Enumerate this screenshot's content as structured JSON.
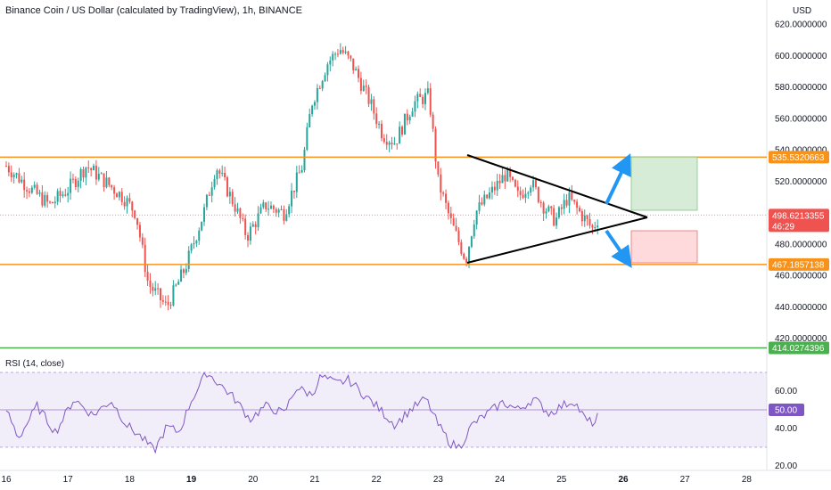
{
  "header": {
    "title": "Binance Coin / US Dollar (calculated by TradingView), 1h, BINANCE",
    "currency": "USD"
  },
  "rsi": {
    "label": "RSI (14, close)",
    "ticks": [
      "60.00",
      "40.00",
      "20.00"
    ],
    "tick_values": [
      60,
      40,
      20
    ],
    "upper_band": 70,
    "lower_band": 30,
    "mid": 50,
    "current_tag": "50.00",
    "colors": {
      "line": "#7e57c2",
      "band_fill": "#7e57c2",
      "mid": "#7e57c2"
    }
  },
  "price_axis": {
    "ticks": [
      "620.0000000",
      "600.0000000",
      "580.0000000",
      "560.0000000",
      "540.0000000",
      "520.0000000",
      "500.0000000",
      "480.0000000",
      "460.0000000",
      "440.0000000",
      "420.0000000"
    ],
    "tick_values": [
      620,
      600,
      580,
      560,
      540,
      520,
      500,
      480,
      460,
      440,
      420
    ]
  },
  "time_axis": {
    "labels": [
      "16",
      "17",
      "18",
      "19",
      "20",
      "21",
      "22",
      "23",
      "24",
      "25",
      "26",
      "27",
      "28"
    ],
    "bold": [
      "19",
      "26"
    ]
  },
  "tags": {
    "resistance": {
      "text": "535.5320663",
      "value": 535.5320663,
      "color": "#f7931a"
    },
    "current_price": {
      "text": "498.6213355",
      "value": 498.6213355,
      "countdown": "46:29",
      "color": "#ef5350"
    },
    "support": {
      "text": "467.1857138",
      "value": 467.1857138,
      "color": "#f7931a"
    },
    "low_line": {
      "text": "414.0274396",
      "value": 414.0274396,
      "color": "#4caf50"
    }
  },
  "colors": {
    "up": "#26a69a",
    "down": "#ef5350",
    "orange_line": "#f7931a",
    "green_line": "#4caf50",
    "triangle": "#000000",
    "arrow": "#2196f3",
    "long_box": "#c8e6c9",
    "short_box": "#ffcdd2"
  },
  "chart_data": {
    "type": "candlestick",
    "title": "Binance Coin / US Dollar (calculated by TradingView), 1h, BINANCE",
    "x_labels": [
      "16",
      "17",
      "18",
      "19",
      "20",
      "21",
      "22",
      "23",
      "24",
      "25",
      "26",
      "27",
      "28"
    ],
    "price_ylim": [
      405,
      630
    ],
    "horizontal_levels": [
      535.5320663,
      467.1857138,
      414.0274396
    ],
    "approx_close_path": [
      {
        "day": 16.0,
        "price": 530
      },
      {
        "day": 16.4,
        "price": 515
      },
      {
        "day": 16.7,
        "price": 505
      },
      {
        "day": 17.0,
        "price": 515
      },
      {
        "day": 17.3,
        "price": 530
      },
      {
        "day": 17.6,
        "price": 520
      },
      {
        "day": 17.9,
        "price": 510
      },
      {
        "day": 18.1,
        "price": 500
      },
      {
        "day": 18.3,
        "price": 455
      },
      {
        "day": 18.6,
        "price": 440
      },
      {
        "day": 18.9,
        "price": 465
      },
      {
        "day": 19.2,
        "price": 500
      },
      {
        "day": 19.4,
        "price": 530
      },
      {
        "day": 19.7,
        "price": 505
      },
      {
        "day": 19.9,
        "price": 485
      },
      {
        "day": 20.2,
        "price": 505
      },
      {
        "day": 20.5,
        "price": 500
      },
      {
        "day": 20.8,
        "price": 530
      },
      {
        "day": 20.95,
        "price": 570
      },
      {
        "day": 21.2,
        "price": 595
      },
      {
        "day": 21.4,
        "price": 605
      },
      {
        "day": 21.6,
        "price": 595
      },
      {
        "day": 21.9,
        "price": 570
      },
      {
        "day": 22.1,
        "price": 550
      },
      {
        "day": 22.3,
        "price": 545
      },
      {
        "day": 22.6,
        "price": 570
      },
      {
        "day": 22.85,
        "price": 575
      },
      {
        "day": 23.0,
        "price": 520
      },
      {
        "day": 23.2,
        "price": 495
      },
      {
        "day": 23.45,
        "price": 470
      },
      {
        "day": 23.6,
        "price": 500
      },
      {
        "day": 23.9,
        "price": 515
      },
      {
        "day": 24.1,
        "price": 525
      },
      {
        "day": 24.3,
        "price": 510
      },
      {
        "day": 24.5,
        "price": 520
      },
      {
        "day": 24.7,
        "price": 505
      },
      {
        "day": 24.9,
        "price": 495
      },
      {
        "day": 25.1,
        "price": 510
      },
      {
        "day": 25.3,
        "price": 500
      },
      {
        "day": 25.5,
        "price": 490
      },
      {
        "day": 25.62,
        "price": 498.62
      }
    ],
    "rsi_path": [
      {
        "day": 16.0,
        "value": 50
      },
      {
        "day": 16.2,
        "value": 35
      },
      {
        "day": 16.5,
        "value": 52
      },
      {
        "day": 16.8,
        "value": 38
      },
      {
        "day": 17.1,
        "value": 56
      },
      {
        "day": 17.4,
        "value": 47
      },
      {
        "day": 17.7,
        "value": 55
      },
      {
        "day": 17.95,
        "value": 42
      },
      {
        "day": 18.2,
        "value": 35
      },
      {
        "day": 18.4,
        "value": 28
      },
      {
        "day": 18.6,
        "value": 41
      },
      {
        "day": 18.8,
        "value": 38
      },
      {
        "day": 19.0,
        "value": 55
      },
      {
        "day": 19.25,
        "value": 70
      },
      {
        "day": 19.45,
        "value": 64
      },
      {
        "day": 19.7,
        "value": 56
      },
      {
        "day": 19.95,
        "value": 45
      },
      {
        "day": 20.2,
        "value": 52
      },
      {
        "day": 20.5,
        "value": 48
      },
      {
        "day": 20.7,
        "value": 62
      },
      {
        "day": 20.95,
        "value": 58
      },
      {
        "day": 21.1,
        "value": 68
      },
      {
        "day": 21.35,
        "value": 64
      },
      {
        "day": 21.55,
        "value": 66
      },
      {
        "day": 21.8,
        "value": 58
      },
      {
        "day": 22.0,
        "value": 52
      },
      {
        "day": 22.3,
        "value": 42
      },
      {
        "day": 22.55,
        "value": 50
      },
      {
        "day": 22.8,
        "value": 56
      },
      {
        "day": 23.0,
        "value": 42
      },
      {
        "day": 23.2,
        "value": 32
      },
      {
        "day": 23.35,
        "value": 30
      },
      {
        "day": 23.55,
        "value": 42
      },
      {
        "day": 23.8,
        "value": 48
      },
      {
        "day": 24.05,
        "value": 54
      },
      {
        "day": 24.3,
        "value": 50
      },
      {
        "day": 24.55,
        "value": 56
      },
      {
        "day": 24.8,
        "value": 48
      },
      {
        "day": 25.0,
        "value": 52
      },
      {
        "day": 25.2,
        "value": 55
      },
      {
        "day": 25.4,
        "value": 44
      },
      {
        "day": 25.55,
        "value": 43
      },
      {
        "day": 25.62,
        "value": 50
      }
    ]
  }
}
